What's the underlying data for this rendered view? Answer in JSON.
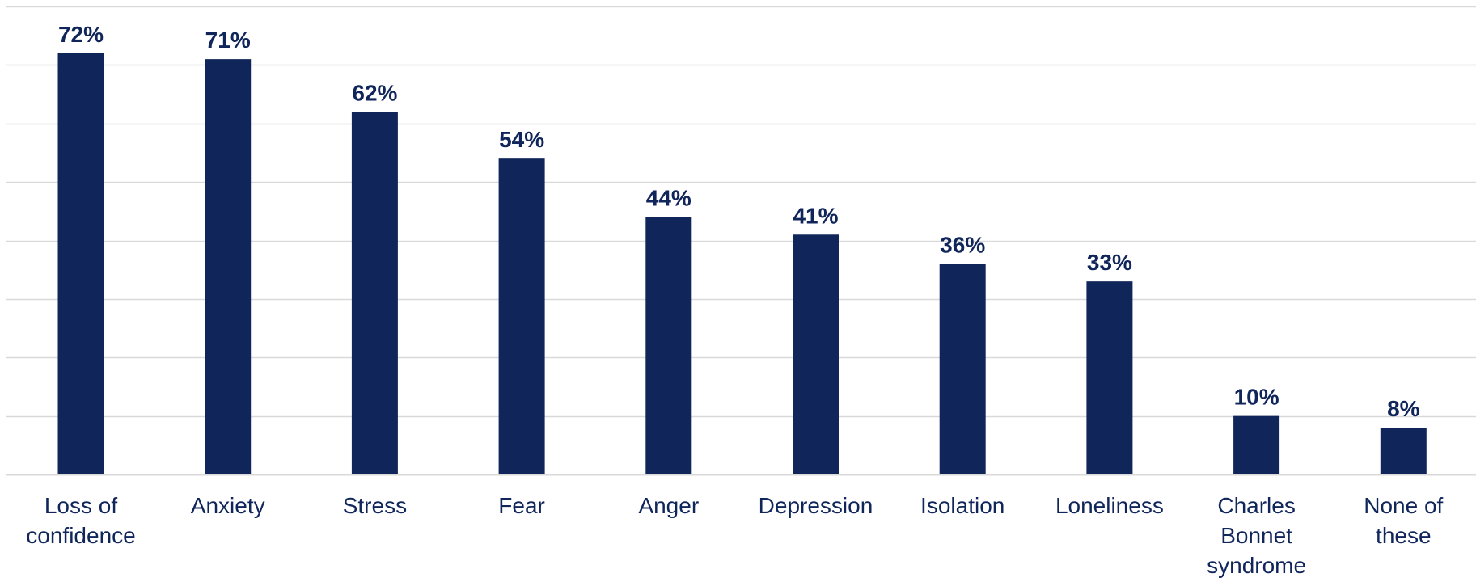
{
  "chart_data": {
    "type": "bar",
    "categories": [
      [
        "Loss of",
        "confidence"
      ],
      [
        "Anxiety"
      ],
      [
        "Stress"
      ],
      [
        "Fear"
      ],
      [
        "Anger"
      ],
      [
        "Depression"
      ],
      [
        "Isolation"
      ],
      [
        "Loneliness"
      ],
      [
        "Charles",
        "Bonnet",
        "syndrome"
      ],
      [
        "None of",
        "these"
      ]
    ],
    "values": [
      72,
      71,
      62,
      54,
      44,
      41,
      36,
      33,
      10,
      8
    ],
    "value_labels": [
      "72%",
      "71%",
      "62%",
      "54%",
      "44%",
      "41%",
      "36%",
      "33%",
      "10%",
      "8%"
    ],
    "ylim": [
      0,
      80
    ],
    "grid": true,
    "bar_color": "#10255a",
    "grid_color": "#d9d9d9",
    "text_color": "#10255a"
  }
}
